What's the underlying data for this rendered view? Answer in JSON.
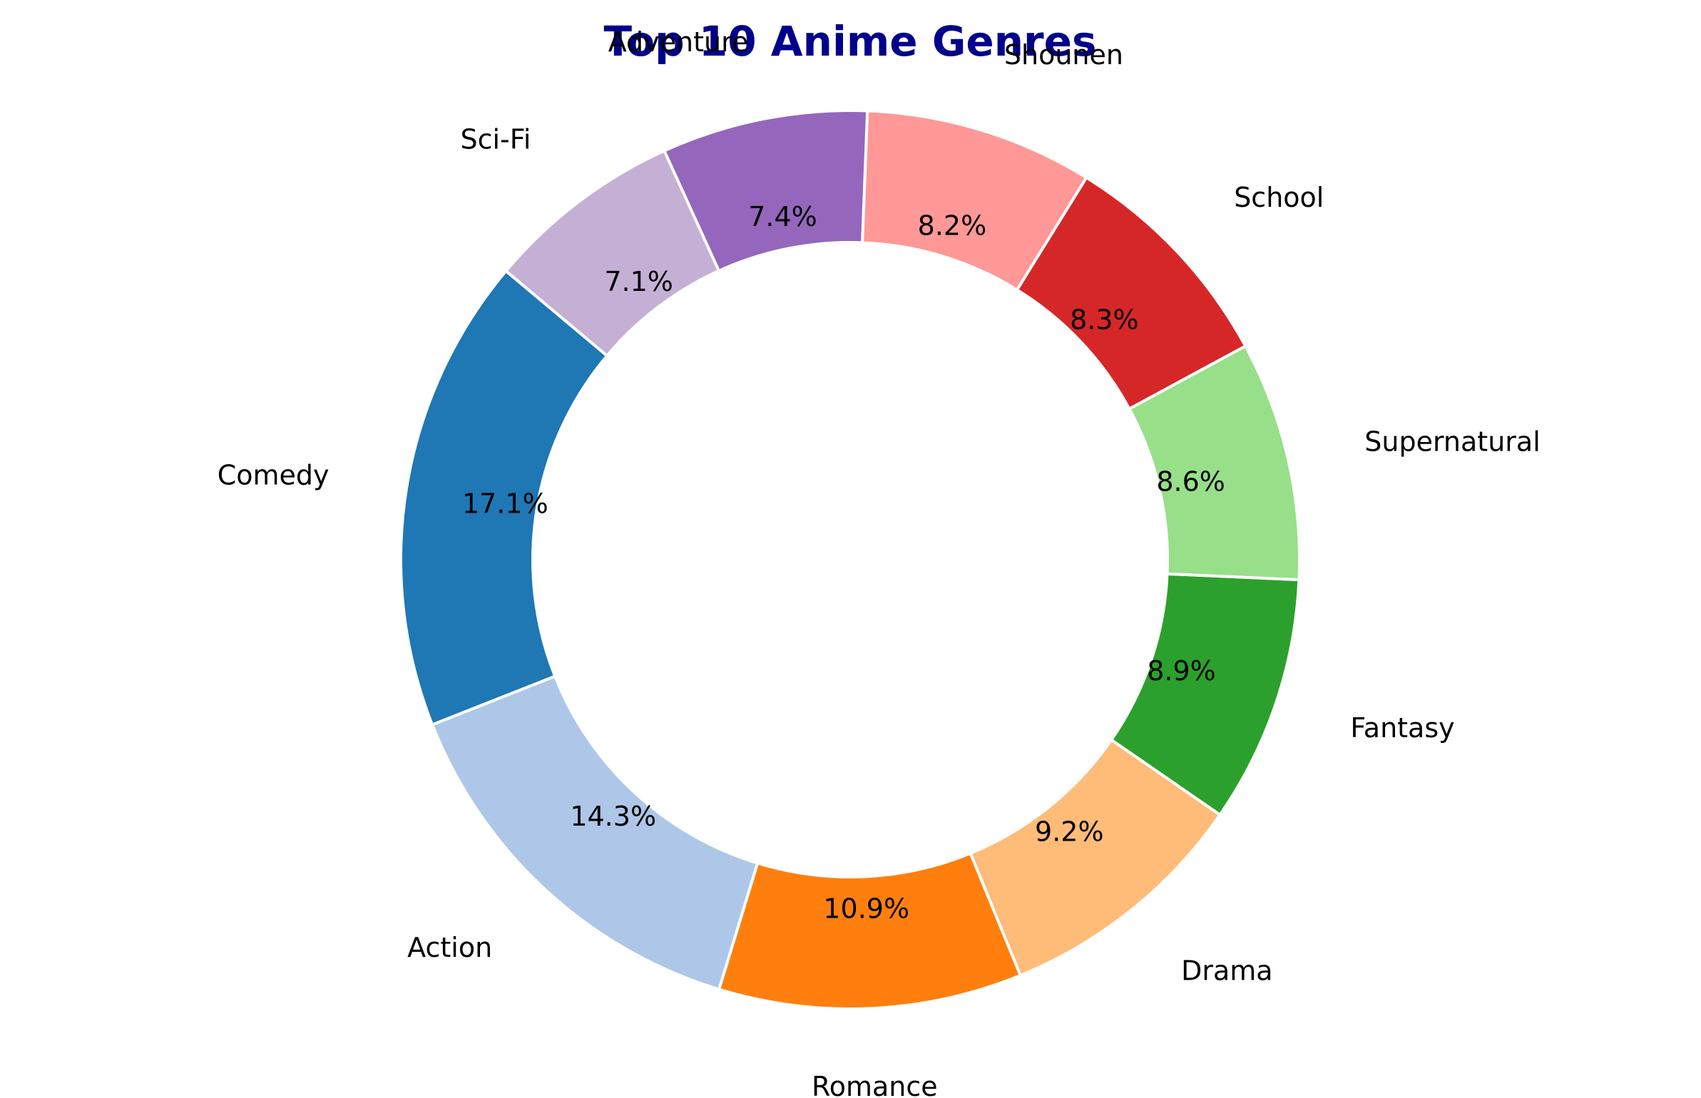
{
  "chart_data": {
    "type": "pie",
    "style": "donut",
    "title": "Top 10 Anime Genres",
    "title_color": "#00008B",
    "start_angle_deg": 140,
    "direction": "counterclockwise",
    "slices": [
      {
        "label": "Comedy",
        "value": 17.1,
        "pct_label": "17.1%",
        "color": "#1F77B4"
      },
      {
        "label": "Action",
        "value": 14.3,
        "pct_label": "14.3%",
        "color": "#AEC7E8"
      },
      {
        "label": "Romance",
        "value": 10.9,
        "pct_label": "10.9%",
        "color": "#FF7F0E"
      },
      {
        "label": "Drama",
        "value": 9.2,
        "pct_label": "9.2%",
        "color": "#FFBB78"
      },
      {
        "label": "Fantasy",
        "value": 8.9,
        "pct_label": "8.9%",
        "color": "#2CA02C"
      },
      {
        "label": "Supernatural",
        "value": 8.6,
        "pct_label": "8.6%",
        "color": "#98DF8A"
      },
      {
        "label": "School",
        "value": 8.3,
        "pct_label": "8.3%",
        "color": "#D62728"
      },
      {
        "label": "Shounen",
        "value": 8.2,
        "pct_label": "8.2%",
        "color": "#FF9896"
      },
      {
        "label": "Adventure",
        "value": 7.4,
        "pct_label": "7.4%",
        "color": "#9467BD"
      },
      {
        "label": "Sci-Fi",
        "value": 7.1,
        "pct_label": "7.1%",
        "color": "#C5B0D5"
      }
    ],
    "edge_color": "#FFFFFF",
    "legend": "none"
  }
}
